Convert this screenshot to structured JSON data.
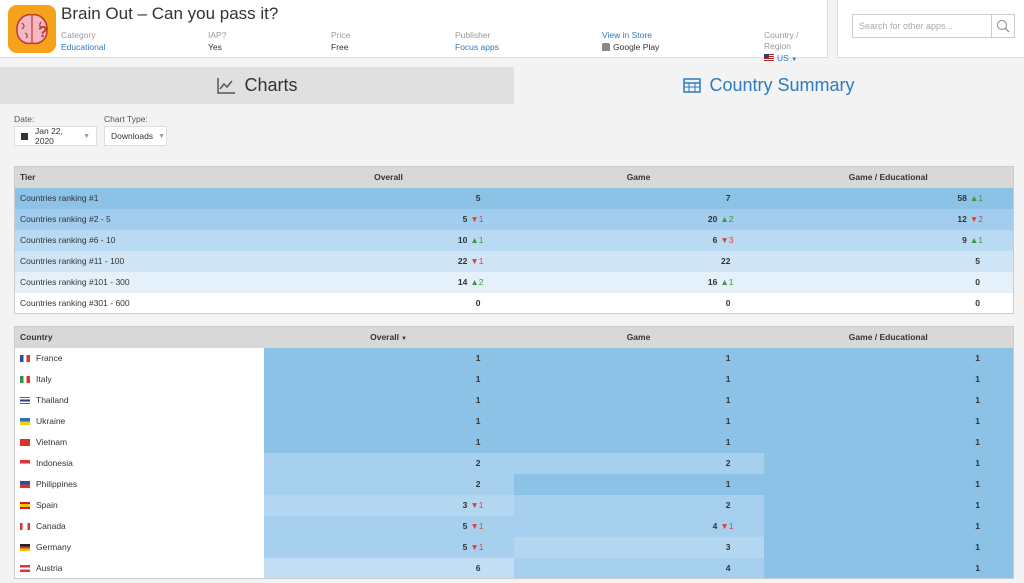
{
  "app": {
    "title": "Brain Out – Can you pass it?",
    "meta": [
      {
        "label": "Category",
        "value": "Educational",
        "link": true
      },
      {
        "label": "IAP?",
        "value": "Yes",
        "link": false
      },
      {
        "label": "Price",
        "value": "Free",
        "link": false
      },
      {
        "label": "Publisher",
        "value": "Focus apps",
        "link": true
      },
      {
        "label": "View in Store",
        "value": "Google Play",
        "link": false
      },
      {
        "label": "Country / Region",
        "value": "US",
        "link": true
      }
    ]
  },
  "search": {
    "placeholder": "Search for other apps..."
  },
  "tabs": [
    {
      "label": "Charts",
      "active": false
    },
    {
      "label": "Country Summary",
      "active": true
    }
  ],
  "controls": {
    "date_label": "Date:",
    "date_value": "Jan 22, 2020",
    "chart_type_label": "Chart Type:",
    "chart_type_value": "Downloads"
  },
  "tier_table": {
    "headers": [
      "Tier",
      "Overall",
      "Game",
      "Game / Educational"
    ],
    "rows": [
      {
        "tier": "Countries ranking #1",
        "overall": "5",
        "overall_change": "",
        "game": "7",
        "game_change": "",
        "edu": "58",
        "edu_change": "▲1"
      },
      {
        "tier": "Countries ranking #2 - 5",
        "overall": "5",
        "overall_change": "▼1",
        "game": "20",
        "game_change": "▲2",
        "edu": "12",
        "edu_change": "▼2"
      },
      {
        "tier": "Countries ranking #6 - 10",
        "overall": "10",
        "overall_change": "▲1",
        "game": "6",
        "game_change": "▼3",
        "edu": "9",
        "edu_change": "▲1"
      },
      {
        "tier": "Countries ranking #11 - 100",
        "overall": "22",
        "overall_change": "▼1",
        "game": "22",
        "game_change": "",
        "edu": "5",
        "edu_change": ""
      },
      {
        "tier": "Countries ranking #101 - 300",
        "overall": "14",
        "overall_change": "▲2",
        "game": "16",
        "game_change": "▲1",
        "edu": "0",
        "edu_change": ""
      },
      {
        "tier": "Countries ranking #301 - 600",
        "overall": "0",
        "overall_change": "",
        "game": "0",
        "game_change": "",
        "edu": "0",
        "edu_change": ""
      }
    ]
  },
  "country_table": {
    "headers": [
      "Country",
      "Overall",
      "Game",
      "Game / Educational"
    ],
    "rows": [
      {
        "country": "France",
        "flag": "france",
        "overall": "1",
        "overall_change": "",
        "game": "1",
        "game_change": "",
        "edu": "1",
        "edu_change": ""
      },
      {
        "country": "Italy",
        "flag": "italy",
        "overall": "1",
        "overall_change": "",
        "game": "1",
        "game_change": "",
        "edu": "1",
        "edu_change": ""
      },
      {
        "country": "Thailand",
        "flag": "thailand",
        "overall": "1",
        "overall_change": "",
        "game": "1",
        "game_change": "",
        "edu": "1",
        "edu_change": ""
      },
      {
        "country": "Ukraine",
        "flag": "ukraine",
        "overall": "1",
        "overall_change": "",
        "game": "1",
        "game_change": "",
        "edu": "1",
        "edu_change": ""
      },
      {
        "country": "Vietnam",
        "flag": "vietnam",
        "overall": "1",
        "overall_change": "",
        "game": "1",
        "game_change": "",
        "edu": "1",
        "edu_change": ""
      },
      {
        "country": "Indonesia",
        "flag": "indonesia",
        "overall": "2",
        "overall_change": "",
        "game": "2",
        "game_change": "",
        "edu": "1",
        "edu_change": ""
      },
      {
        "country": "Philippines",
        "flag": "philippines",
        "overall": "2",
        "overall_change": "",
        "game": "1",
        "game_change": "",
        "edu": "1",
        "edu_change": ""
      },
      {
        "country": "Spain",
        "flag": "spain",
        "overall": "3",
        "overall_change": "▼1",
        "game": "2",
        "game_change": "",
        "edu": "1",
        "edu_change": ""
      },
      {
        "country": "Canada",
        "flag": "canada",
        "overall": "5",
        "overall_change": "▼1",
        "game": "4",
        "game_change": "▼1",
        "edu": "1",
        "edu_change": ""
      },
      {
        "country": "Germany",
        "flag": "germany",
        "overall": "5",
        "overall_change": "▼1",
        "game": "3",
        "game_change": "",
        "edu": "1",
        "edu_change": ""
      },
      {
        "country": "Austria",
        "flag": "austria",
        "overall": "6",
        "overall_change": "",
        "game": "4",
        "game_change": "",
        "edu": "1",
        "edu_change": ""
      }
    ]
  }
}
